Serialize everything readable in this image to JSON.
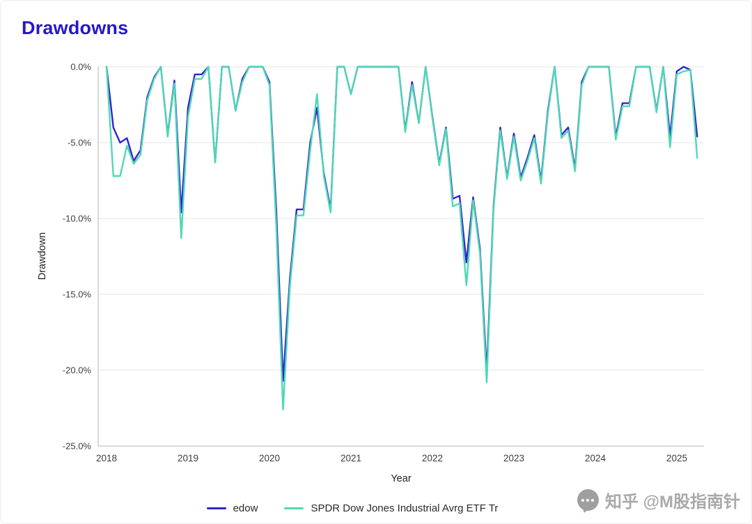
{
  "title": "Drawdowns",
  "accent_color": "#2518c9",
  "watermark": {
    "text": "知乎 @M股指南针",
    "icon": "chat-bubble-icon"
  },
  "chart_data": {
    "type": "line",
    "title": "Drawdowns",
    "xlabel": "Year",
    "ylabel": "Drawdown",
    "ylim": [
      -25,
      0
    ],
    "grid": "horizontal",
    "legend_position": "bottom",
    "y_ticks": [
      "0.0%",
      "-5.0%",
      "-10.0%",
      "-15.0%",
      "-20.0%",
      "-25.0%"
    ],
    "y_tick_values": [
      0,
      -5,
      -10,
      -15,
      -20,
      -25
    ],
    "x_ticks": [
      "2018",
      "2019",
      "2020",
      "2021",
      "2022",
      "2023",
      "2024",
      "2025"
    ],
    "months": [
      "2018-01",
      "2018-02",
      "2018-03",
      "2018-04",
      "2018-05",
      "2018-06",
      "2018-07",
      "2018-08",
      "2018-09",
      "2018-10",
      "2018-11",
      "2018-12",
      "2019-01",
      "2019-02",
      "2019-03",
      "2019-04",
      "2019-05",
      "2019-06",
      "2019-07",
      "2019-08",
      "2019-09",
      "2019-10",
      "2019-11",
      "2019-12",
      "2020-01",
      "2020-02",
      "2020-03",
      "2020-04",
      "2020-05",
      "2020-06",
      "2020-07",
      "2020-08",
      "2020-09",
      "2020-10",
      "2020-11",
      "2020-12",
      "2021-01",
      "2021-02",
      "2021-03",
      "2021-04",
      "2021-05",
      "2021-06",
      "2021-07",
      "2021-08",
      "2021-09",
      "2021-10",
      "2021-11",
      "2021-12",
      "2022-01",
      "2022-02",
      "2022-03",
      "2022-04",
      "2022-05",
      "2022-06",
      "2022-07",
      "2022-08",
      "2022-09",
      "2022-10",
      "2022-11",
      "2022-12",
      "2023-01",
      "2023-02",
      "2023-03",
      "2023-04",
      "2023-05",
      "2023-06",
      "2023-07",
      "2023-08",
      "2023-09",
      "2023-10",
      "2023-11",
      "2023-12",
      "2024-01",
      "2024-02",
      "2024-03",
      "2024-04",
      "2024-05",
      "2024-06",
      "2024-07",
      "2024-08",
      "2024-09",
      "2024-10",
      "2024-11",
      "2024-12",
      "2025-01",
      "2025-02",
      "2025-03",
      "2025-04"
    ],
    "series": [
      {
        "name": "edow",
        "color": "#3222d1",
        "values": [
          0.0,
          -4.0,
          -5.0,
          -4.7,
          -6.2,
          -5.5,
          -2.0,
          -0.7,
          0.0,
          -4.5,
          -0.9,
          -9.6,
          -2.7,
          -0.5,
          -0.5,
          0.0,
          -6.3,
          0.0,
          0.0,
          -2.9,
          -0.8,
          0.0,
          0.0,
          0.0,
          -1.0,
          -9.5,
          -20.7,
          -14.0,
          -9.4,
          -9.4,
          -5.0,
          -2.7,
          -7.0,
          -9.4,
          0.0,
          0.0,
          -1.8,
          0.0,
          0.0,
          0.0,
          0.0,
          0.0,
          0.0,
          0.0,
          -4.2,
          -1.0,
          -3.7,
          0.0,
          -3.3,
          -6.4,
          -4.0,
          -8.7,
          -8.5,
          -12.9,
          -8.6,
          -12.0,
          -20.1,
          -9.2,
          -4.0,
          -7.3,
          -4.4,
          -7.3,
          -6.0,
          -4.5,
          -7.5,
          -2.9,
          0.0,
          -4.5,
          -4.0,
          -6.7,
          -1.0,
          0.0,
          0.0,
          0.0,
          0.0,
          -4.6,
          -2.4,
          -2.4,
          0.0,
          0.0,
          0.0,
          -2.9,
          0.0,
          -4.6,
          -0.3,
          0.0,
          -0.2,
          -4.6
        ]
      },
      {
        "name": "SPDR Dow Jones Industrial Avrg ETF Tr",
        "color": "#4fd8b4",
        "values": [
          0.0,
          -7.2,
          -7.2,
          -5.2,
          -6.4,
          -5.8,
          -2.2,
          -0.8,
          0.0,
          -4.6,
          -1.1,
          -11.3,
          -3.3,
          -0.8,
          -0.8,
          0.0,
          -6.3,
          0.0,
          0.0,
          -2.9,
          -1.0,
          0.0,
          0.0,
          0.0,
          -1.2,
          -10.5,
          -22.6,
          -14.5,
          -9.8,
          -9.8,
          -5.5,
          -1.8,
          -7.2,
          -9.6,
          0.0,
          0.0,
          -1.8,
          0.0,
          0.0,
          0.0,
          0.0,
          0.0,
          0.0,
          0.0,
          -4.3,
          -1.2,
          -3.7,
          0.0,
          -3.4,
          -6.5,
          -4.1,
          -9.2,
          -9.0,
          -14.4,
          -8.8,
          -12.3,
          -20.8,
          -9.4,
          -4.2,
          -7.4,
          -4.6,
          -7.5,
          -6.2,
          -4.7,
          -7.7,
          -3.1,
          0.0,
          -4.7,
          -4.2,
          -6.9,
          -1.2,
          0.0,
          0.0,
          0.0,
          0.0,
          -4.8,
          -2.6,
          -2.6,
          0.0,
          0.0,
          0.0,
          -3.0,
          0.0,
          -5.3,
          -0.5,
          -0.3,
          -0.2,
          -6.0
        ]
      }
    ]
  }
}
